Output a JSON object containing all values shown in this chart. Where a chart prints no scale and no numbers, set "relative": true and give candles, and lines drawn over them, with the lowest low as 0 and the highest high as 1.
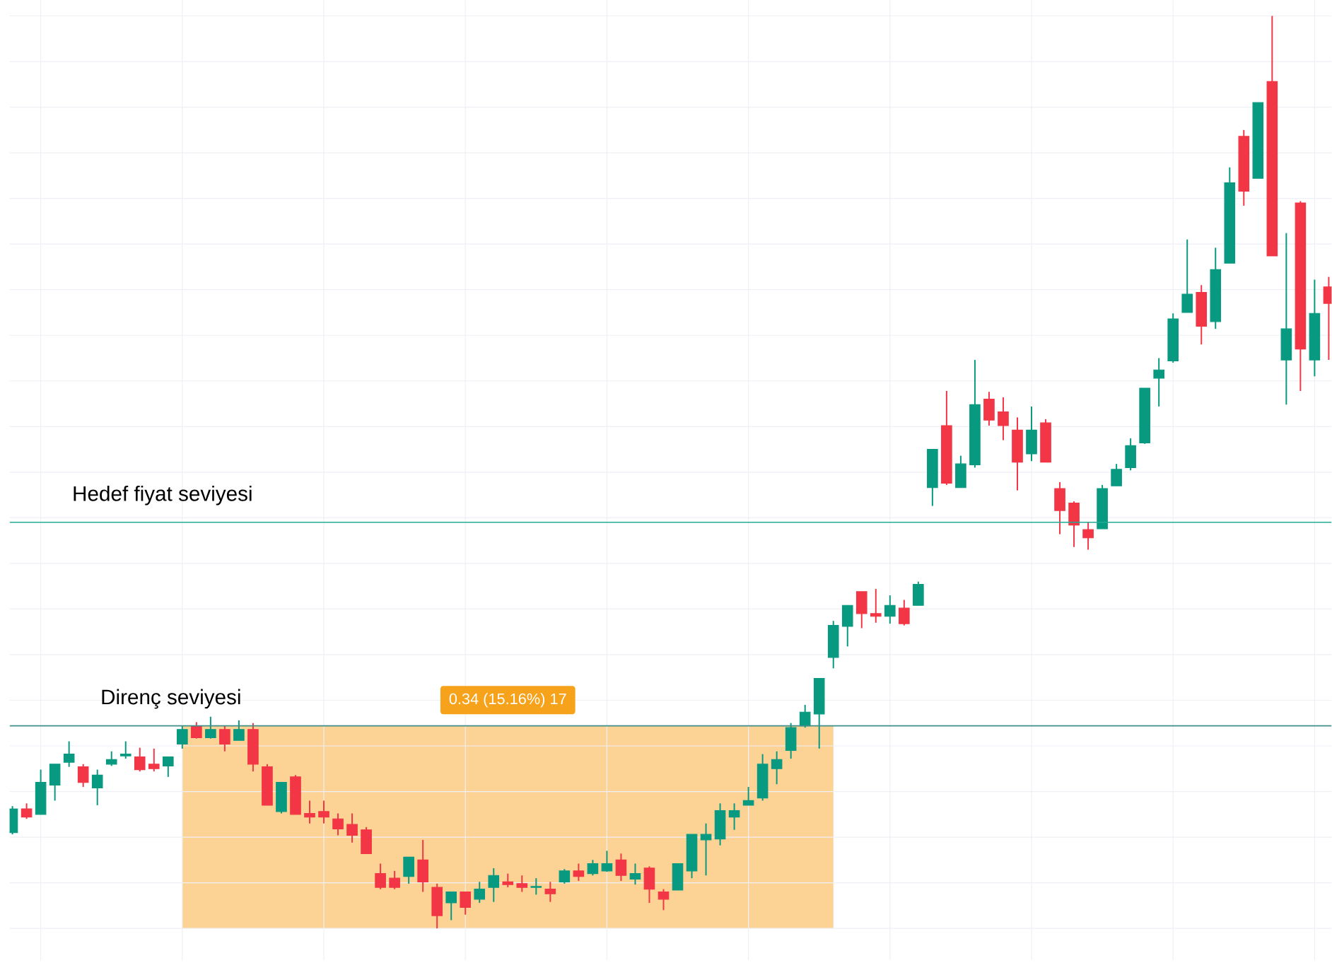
{
  "chart_data": {
    "type": "candlestick",
    "relative": true,
    "grid": true,
    "tick_labels": false,
    "categories": [
      null,
      null,
      null,
      null,
      null,
      null,
      null,
      null,
      null,
      null,
      null,
      null,
      null,
      null,
      null,
      null,
      null,
      null,
      null,
      null,
      null,
      null,
      null,
      null,
      null,
      null,
      null,
      null,
      null,
      null,
      null,
      null,
      null,
      null,
      null,
      null,
      null,
      null,
      null,
      null,
      null,
      null,
      null,
      null,
      null,
      null,
      null,
      null,
      null,
      null,
      null,
      null,
      null,
      null,
      null,
      null,
      null,
      null,
      null,
      null,
      null,
      null,
      null,
      null,
      null,
      null,
      null,
      null,
      null,
      null,
      null,
      null,
      null,
      null,
      null,
      null,
      null,
      null,
      null,
      null,
      null,
      null,
      null,
      null,
      null,
      null,
      null,
      null,
      null,
      null,
      null,
      null,
      null,
      null
    ],
    "ohlc": [
      [
        0.105,
        0.134,
        0.103,
        0.131
      ],
      [
        0.131,
        0.137,
        0.12,
        0.122
      ],
      [
        0.125,
        0.174,
        0.125,
        0.16
      ],
      [
        0.157,
        0.18,
        0.14,
        0.18
      ],
      [
        0.182,
        0.205,
        0.177,
        0.191
      ],
      [
        0.177,
        0.18,
        0.155,
        0.16
      ],
      [
        0.154,
        0.174,
        0.135,
        0.168
      ],
      [
        0.18,
        0.194,
        0.178,
        0.185
      ],
      [
        0.189,
        0.205,
        0.186,
        0.191
      ],
      [
        0.188,
        0.198,
        0.172,
        0.174
      ],
      [
        0.18,
        0.197,
        0.172,
        0.175
      ],
      [
        0.178,
        0.188,
        0.166,
        0.188
      ],
      [
        0.202,
        0.222,
        0.197,
        0.218
      ],
      [
        0.222,
        0.226,
        0.208,
        0.209
      ],
      [
        0.209,
        0.232,
        0.208,
        0.218
      ],
      [
        0.218,
        0.222,
        0.194,
        0.202
      ],
      [
        0.206,
        0.228,
        0.206,
        0.218
      ],
      [
        0.218,
        0.225,
        0.172,
        0.18
      ],
      [
        0.177,
        0.18,
        0.135,
        0.135
      ],
      [
        0.128,
        0.16,
        0.126,
        0.16
      ],
      [
        0.166,
        0.168,
        0.125,
        0.125
      ],
      [
        0.126,
        0.14,
        0.115,
        0.122
      ],
      [
        0.128,
        0.14,
        0.115,
        0.122
      ],
      [
        0.12,
        0.126,
        0.102,
        0.109
      ],
      [
        0.114,
        0.126,
        0.094,
        0.102
      ],
      [
        0.108,
        0.111,
        0.082,
        0.082
      ],
      [
        0.06,
        0.071,
        0.043,
        0.045
      ],
      [
        0.055,
        0.063,
        0.043,
        0.045
      ],
      [
        0.057,
        0.078,
        0.049,
        0.078
      ],
      [
        0.075,
        0.097,
        0.04,
        0.051
      ],
      [
        0.045,
        0.049,
        0,
        0.014
      ],
      [
        0.028,
        0.04,
        0.009,
        0.04
      ],
      [
        0.04,
        0.04,
        0.015,
        0.023
      ],
      [
        0.032,
        0.051,
        0.028,
        0.043
      ],
      [
        0.045,
        0.066,
        0.029,
        0.058
      ],
      [
        0.051,
        0.06,
        0.045,
        0.048
      ],
      [
        0.049,
        0.058,
        0.04,
        0.045
      ],
      [
        0.045,
        0.055,
        0.037,
        0.046
      ],
      [
        0.043,
        0.051,
        0.029,
        0.038
      ],
      [
        0.051,
        0.065,
        0.049,
        0.063
      ],
      [
        0.063,
        0.071,
        0.052,
        0.057
      ],
      [
        0.06,
        0.075,
        0.058,
        0.071
      ],
      [
        0.063,
        0.085,
        0.062,
        0.071
      ],
      [
        0.075,
        0.082,
        0.052,
        0.058
      ],
      [
        0.054,
        0.071,
        0.048,
        0.06
      ],
      [
        0.066,
        0.068,
        0.028,
        0.043
      ],
      [
        0.04,
        0.043,
        0.02,
        0.032
      ],
      [
        0.042,
        0.071,
        0.042,
        0.071
      ],
      [
        0.063,
        0.103,
        0.055,
        0.103
      ],
      [
        0.097,
        0.115,
        0.058,
        0.103
      ],
      [
        0.098,
        0.137,
        0.091,
        0.129
      ],
      [
        0.122,
        0.137,
        0.108,
        0.129
      ],
      [
        0.135,
        0.155,
        0.135,
        0.14
      ],
      [
        0.143,
        0.191,
        0.14,
        0.18
      ],
      [
        0.175,
        0.194,
        0.158,
        0.185
      ],
      [
        0.195,
        0.225,
        0.186,
        0.22
      ],
      [
        0.222,
        0.245,
        0.22,
        0.237
      ],
      [
        0.235,
        0.274,
        0.197,
        0.274
      ],
      [
        0.297,
        0.337,
        0.285,
        0.332
      ],
      [
        0.331,
        0.354,
        0.309,
        0.354
      ],
      [
        0.369,
        0.369,
        0.329,
        0.345
      ],
      [
        0.345,
        0.372,
        0.335,
        0.342
      ],
      [
        0.342,
        0.365,
        0.334,
        0.354
      ],
      [
        0.351,
        0.36,
        0.332,
        0.334
      ],
      [
        0.354,
        0.38,
        0.354,
        0.377
      ],
      [
        0.483,
        0.525,
        0.463,
        0.525
      ],
      [
        0.551,
        0.589,
        0.486,
        0.488
      ],
      [
        0.483,
        0.518,
        0.483,
        0.509
      ],
      [
        0.508,
        0.623,
        0.505,
        0.574
      ],
      [
        0.58,
        0.588,
        0.551,
        0.557
      ],
      [
        0.566,
        0.582,
        0.535,
        0.551
      ],
      [
        0.546,
        0.56,
        0.48,
        0.511
      ],
      [
        0.52,
        0.572,
        0.512,
        0.546
      ],
      [
        0.554,
        0.558,
        0.511,
        0.511
      ],
      [
        0.482,
        0.489,
        0.432,
        0.458
      ],
      [
        0.466,
        0.468,
        0.418,
        0.442
      ],
      [
        0.437,
        0.445,
        0.415,
        0.428
      ],
      [
        0.438,
        0.486,
        0.438,
        0.482
      ],
      [
        0.485,
        0.509,
        0.485,
        0.503
      ],
      [
        0.505,
        0.537,
        0.502,
        0.529
      ],
      [
        0.532,
        0.592,
        0.531,
        0.592
      ],
      [
        0.603,
        0.625,
        0.572,
        0.612
      ],
      [
        0.622,
        0.674,
        0.62,
        0.668
      ],
      [
        0.675,
        0.755,
        0.675,
        0.695
      ],
      [
        0.697,
        0.705,
        0.64,
        0.66
      ],
      [
        0.665,
        0.746,
        0.657,
        0.722
      ],
      [
        0.729,
        0.834,
        0.729,
        0.817
      ],
      [
        0.868,
        0.875,
        0.792,
        0.808
      ],
      [
        0.822,
        0.905,
        0.822,
        0.905
      ],
      [
        0.928,
        1,
        0.737,
        0.737
      ],
      [
        0.623,
        0.762,
        0.574,
        0.657
      ],
      [
        0.795,
        0.797,
        0.589,
        0.635
      ],
      [
        0.623,
        0.711,
        0.605,
        0.674
      ],
      [
        0.703,
        0.714,
        0.623,
        0.685
      ]
    ],
    "colors": [
      "#089981",
      "#f23645",
      "#089981",
      "#089981",
      "#089981",
      "#f23645",
      "#089981",
      "#089981",
      "#089981",
      "#f23645",
      "#f23645",
      "#089981",
      "#089981",
      "#f23645",
      "#089981",
      "#f23645",
      "#089981",
      "#f23645",
      "#f23645",
      "#089981",
      "#f23645",
      "#f23645",
      "#f23645",
      "#f23645",
      "#f23645",
      "#f23645",
      "#f23645",
      "#f23645",
      "#089981",
      "#f23645",
      "#f23645",
      "#089981",
      "#f23645",
      "#089981",
      "#089981",
      "#f23645",
      "#f23645",
      "#089981",
      "#f23645",
      "#089981",
      "#f23645",
      "#089981",
      "#089981",
      "#f23645",
      "#089981",
      "#f23645",
      "#f23645",
      "#089981",
      "#089981",
      "#089981",
      "#089981",
      "#089981",
      "#089981",
      "#089981",
      "#089981",
      "#089981",
      "#089981",
      "#089981",
      "#089981",
      "#089981",
      "#f23645",
      "#f23645",
      "#089981",
      "#f23645",
      "#089981",
      "#089981",
      "#f23645",
      "#089981",
      "#089981",
      "#f23645",
      "#f23645",
      "#f23645",
      "#089981",
      "#f23645",
      "#f23645",
      "#f23645",
      "#f23645",
      "#089981",
      "#089981",
      "#089981",
      "#089981",
      "#089981",
      "#089981",
      "#089981",
      "#f23645",
      "#089981",
      "#089981",
      "#f23645",
      "#089981",
      "#f23645",
      "#089981",
      "#f23645",
      "#089981",
      "#f23645"
    ],
    "ref_lines": [
      {
        "axis": "y",
        "value": 0.445,
        "label": "Hedef fiyat seviyesi",
        "color": "#22ab94"
      },
      {
        "axis": "y",
        "value": 0.222,
        "label": "Direnç seviyesi",
        "color": "#3f8f88"
      }
    ],
    "annotations": [
      "0.34 (15.16%) 17"
    ]
  }
}
